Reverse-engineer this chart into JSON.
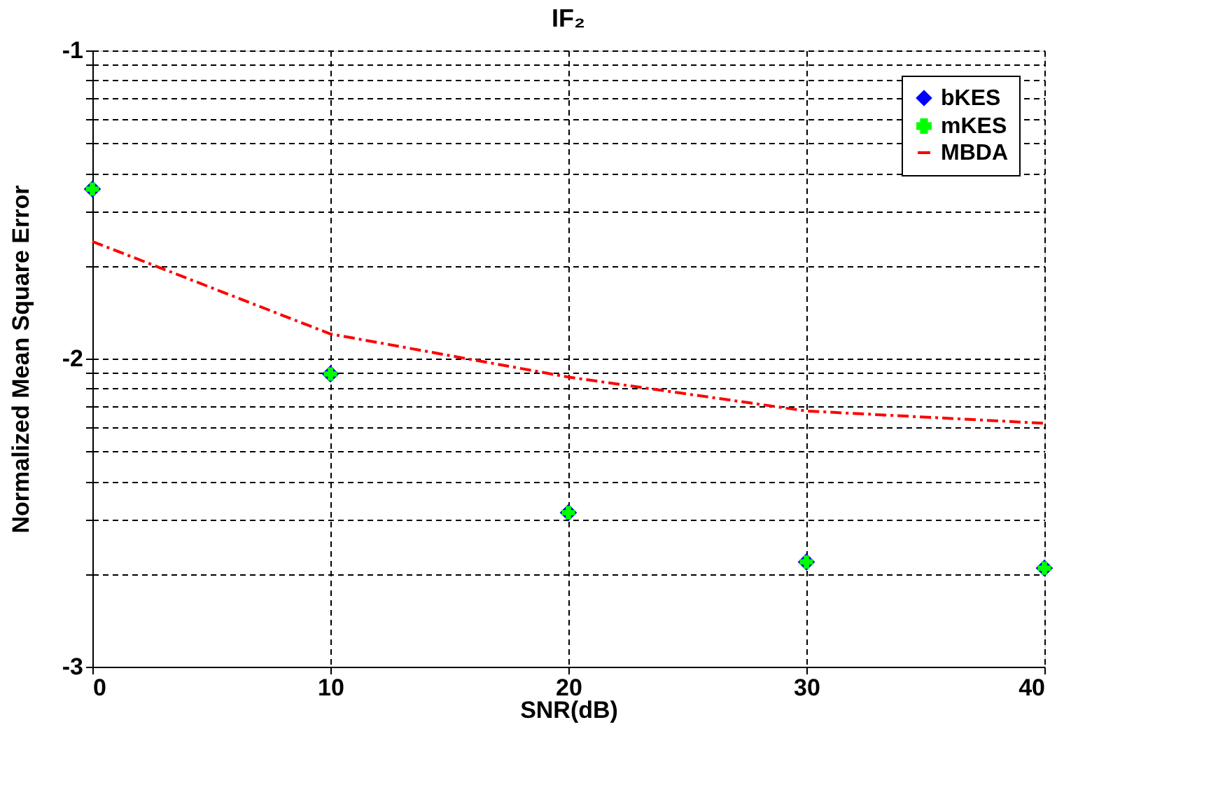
{
  "chart_data": {
    "type": "scatter",
    "title": "IF₂",
    "xlabel": "SNR(dB)",
    "ylabel": "Normalized Mean Square Error",
    "x": [
      0,
      10,
      20,
      30,
      40
    ],
    "series": [
      {
        "name": "bKES",
        "color": "#0000ff",
        "marker": "diamond",
        "values": [
          -1.45,
          -2.05,
          -2.5,
          -2.66,
          -2.68
        ]
      },
      {
        "name": "mKES",
        "color": "#00ff00",
        "marker": "cross",
        "values": [
          -1.45,
          -2.05,
          -2.5,
          -2.66,
          -2.68
        ]
      },
      {
        "name": "MBDA",
        "type": "line",
        "color": "#ff0000",
        "marker": "none",
        "line_style": "dashed",
        "values": [
          -1.62,
          -1.92,
          -2.06,
          -2.17,
          -2.21
        ]
      }
    ],
    "xlim": [
      0,
      40
    ],
    "xticks": [
      0,
      10,
      20,
      30,
      40
    ],
    "ylim": [
      -3,
      -1
    ],
    "yticks": [
      -3,
      {
        "value": -2.699,
        "label": null
      },
      {
        "value": -2.523,
        "label": null
      },
      {
        "value": -2.398,
        "label": null
      },
      {
        "value": -2.301,
        "label": null
      },
      {
        "value": -2.222,
        "label": null
      },
      {
        "value": -2.155,
        "label": null
      },
      {
        "value": -2.097,
        "label": null
      },
      {
        "value": -2.046,
        "label": null
      },
      -2,
      {
        "value": -1.699,
        "label": null
      },
      {
        "value": -1.523,
        "label": null
      },
      {
        "value": -1.398,
        "label": null
      },
      {
        "value": -1.301,
        "label": null
      },
      {
        "value": -1.222,
        "label": null
      },
      {
        "value": -1.155,
        "label": null
      },
      {
        "value": -1.097,
        "label": null
      },
      {
        "value": -1.046,
        "label": null
      },
      -1
    ],
    "grid": true,
    "legend": "top right"
  }
}
